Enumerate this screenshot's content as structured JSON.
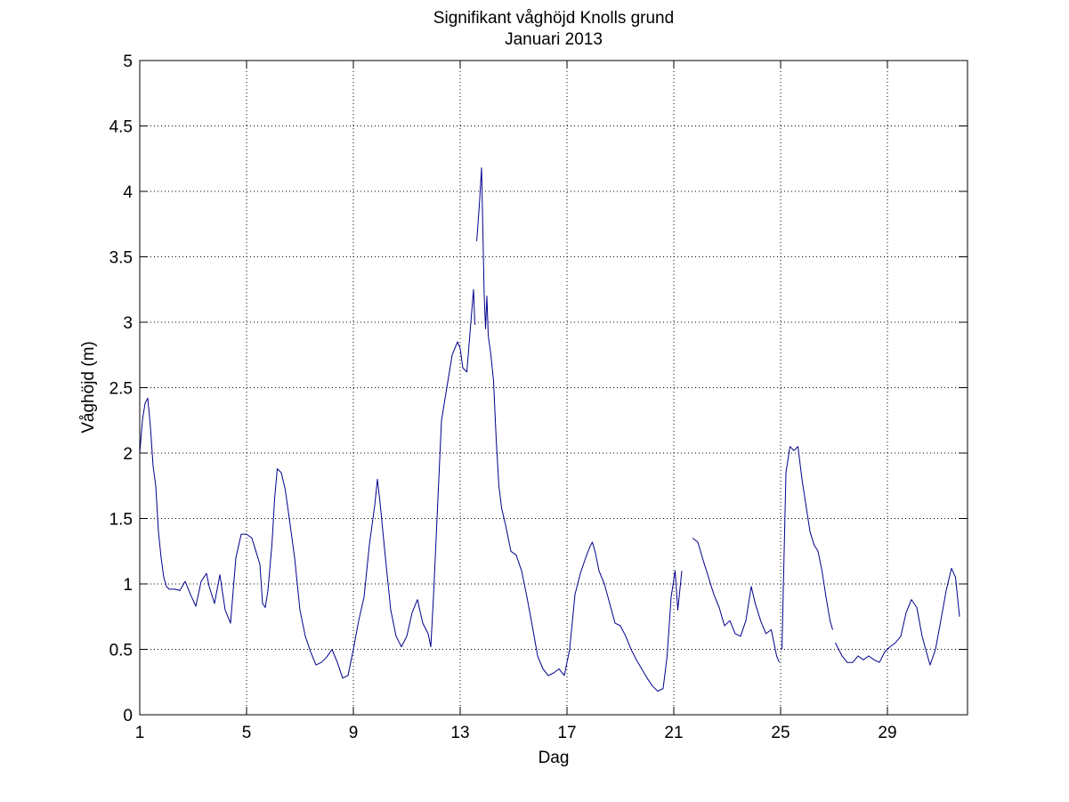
{
  "chart_data": {
    "type": "line",
    "title": "Signifikant våghöjd Knolls grund",
    "subtitle": "Januari 2013",
    "xlabel": "Dag",
    "ylabel": "Våghöjd (m)",
    "xlim": [
      1,
      32
    ],
    "ylim": [
      0,
      5
    ],
    "xticks": [
      1,
      5,
      9,
      13,
      17,
      21,
      25,
      29
    ],
    "yticks": [
      0,
      0.5,
      1,
      1.5,
      2,
      2.5,
      3,
      3.5,
      4,
      4.5,
      5
    ],
    "xtick_labels": [
      "1",
      "5",
      "9",
      "13",
      "17",
      "21",
      "25",
      "29"
    ],
    "ytick_labels": [
      "0",
      "0.5",
      "1",
      "1.5",
      "2",
      "2.5",
      "3",
      "3.5",
      "4",
      "4.5",
      "5"
    ],
    "grid": true,
    "line_color": "#00008b",
    "series": [
      {
        "segments": [
          [
            [
              1.0,
              2.0
            ],
            [
              1.1,
              2.25
            ],
            [
              1.2,
              2.38
            ],
            [
              1.3,
              2.42
            ],
            [
              1.4,
              2.2
            ],
            [
              1.5,
              1.9
            ],
            [
              1.6,
              1.75
            ],
            [
              1.7,
              1.4
            ],
            [
              1.8,
              1.2
            ],
            [
              1.9,
              1.05
            ],
            [
              2.0,
              0.98
            ],
            [
              2.1,
              0.96
            ],
            [
              2.3,
              0.96
            ],
            [
              2.5,
              0.95
            ],
            [
              2.7,
              1.02
            ],
            [
              2.9,
              0.92
            ],
            [
              3.1,
              0.83
            ],
            [
              3.3,
              1.02
            ],
            [
              3.5,
              1.08
            ],
            [
              3.6,
              0.98
            ],
            [
              3.8,
              0.85
            ],
            [
              4.0,
              1.07
            ],
            [
              4.2,
              0.8
            ],
            [
              4.4,
              0.7
            ],
            [
              4.6,
              1.2
            ],
            [
              4.8,
              1.38
            ],
            [
              5.0,
              1.38
            ],
            [
              5.2,
              1.35
            ],
            [
              5.35,
              1.25
            ],
            [
              5.5,
              1.15
            ],
            [
              5.6,
              0.85
            ],
            [
              5.7,
              0.82
            ],
            [
              5.8,
              0.95
            ],
            [
              5.95,
              1.3
            ],
            [
              6.05,
              1.65
            ],
            [
              6.15,
              1.88
            ],
            [
              6.3,
              1.85
            ],
            [
              6.45,
              1.72
            ],
            [
              6.6,
              1.5
            ],
            [
              6.8,
              1.2
            ],
            [
              7.0,
              0.8
            ],
            [
              7.2,
              0.6
            ],
            [
              7.4,
              0.48
            ],
            [
              7.6,
              0.38
            ],
            [
              7.8,
              0.4
            ],
            [
              8.0,
              0.44
            ],
            [
              8.2,
              0.5
            ],
            [
              8.4,
              0.4
            ],
            [
              8.6,
              0.28
            ],
            [
              8.8,
              0.3
            ],
            [
              9.0,
              0.5
            ],
            [
              9.2,
              0.72
            ],
            [
              9.4,
              0.9
            ],
            [
              9.6,
              1.3
            ],
            [
              9.8,
              1.6
            ],
            [
              9.9,
              1.8
            ],
            [
              10.0,
              1.62
            ],
            [
              10.2,
              1.2
            ],
            [
              10.4,
              0.8
            ],
            [
              10.6,
              0.6
            ],
            [
              10.8,
              0.52
            ],
            [
              11.0,
              0.6
            ],
            [
              11.2,
              0.78
            ],
            [
              11.4,
              0.88
            ],
            [
              11.6,
              0.7
            ],
            [
              11.8,
              0.62
            ],
            [
              11.9,
              0.52
            ],
            [
              12.0,
              0.9
            ],
            [
              12.2,
              1.8
            ],
            [
              12.3,
              2.25
            ],
            [
              12.5,
              2.5
            ],
            [
              12.7,
              2.75
            ],
            [
              12.9,
              2.85
            ],
            [
              13.0,
              2.8
            ],
            [
              13.1,
              2.65
            ],
            [
              13.25,
              2.62
            ],
            [
              13.4,
              3.0
            ],
            [
              13.5,
              3.25
            ],
            [
              13.55,
              2.98
            ]
          ],
          [
            [
              13.62,
              3.62
            ],
            [
              13.72,
              3.9
            ],
            [
              13.8,
              4.18
            ],
            [
              13.85,
              3.7
            ],
            [
              13.9,
              3.2
            ],
            [
              13.95,
              2.95
            ],
            [
              14.0,
              3.2
            ],
            [
              14.05,
              2.9
            ],
            [
              14.15,
              2.75
            ],
            [
              14.25,
              2.55
            ],
            [
              14.35,
              2.1
            ],
            [
              14.45,
              1.75
            ],
            [
              14.55,
              1.58
            ],
            [
              14.7,
              1.45
            ],
            [
              14.9,
              1.25
            ],
            [
              15.1,
              1.22
            ],
            [
              15.3,
              1.1
            ],
            [
              15.5,
              0.9
            ],
            [
              15.7,
              0.68
            ],
            [
              15.9,
              0.45
            ],
            [
              16.1,
              0.35
            ],
            [
              16.3,
              0.3
            ],
            [
              16.5,
              0.32
            ],
            [
              16.7,
              0.35
            ],
            [
              16.9,
              0.3
            ],
            [
              17.1,
              0.5
            ],
            [
              17.3,
              0.92
            ],
            [
              17.5,
              1.08
            ],
            [
              17.7,
              1.2
            ],
            [
              17.85,
              1.28
            ],
            [
              17.95,
              1.32
            ],
            [
              18.05,
              1.25
            ],
            [
              18.2,
              1.1
            ],
            [
              18.4,
              1.0
            ],
            [
              18.6,
              0.85
            ],
            [
              18.8,
              0.7
            ],
            [
              19.0,
              0.68
            ],
            [
              19.2,
              0.6
            ],
            [
              19.4,
              0.5
            ],
            [
              19.6,
              0.42
            ],
            [
              19.8,
              0.35
            ],
            [
              20.0,
              0.28
            ],
            [
              20.2,
              0.22
            ],
            [
              20.4,
              0.18
            ],
            [
              20.6,
              0.2
            ],
            [
              20.75,
              0.45
            ],
            [
              20.9,
              0.9
            ],
            [
              21.05,
              1.1
            ],
            [
              21.15,
              0.8
            ],
            [
              21.3,
              1.1
            ]
          ]
        ]
      },
      {
        "segments": [
          [
            [
              21.7,
              1.35
            ],
            [
              21.9,
              1.32
            ],
            [
              22.1,
              1.18
            ],
            [
              22.3,
              1.05
            ],
            [
              22.5,
              0.92
            ],
            [
              22.7,
              0.82
            ],
            [
              22.9,
              0.68
            ],
            [
              23.1,
              0.72
            ],
            [
              23.3,
              0.62
            ],
            [
              23.5,
              0.6
            ],
            [
              23.7,
              0.72
            ],
            [
              23.9,
              0.98
            ],
            [
              24.05,
              0.85
            ],
            [
              24.25,
              0.72
            ],
            [
              24.45,
              0.62
            ],
            [
              24.65,
              0.65
            ],
            [
              24.85,
              0.45
            ],
            [
              24.95,
              0.4
            ]
          ],
          [
            [
              25.05,
              0.5
            ],
            [
              25.2,
              1.85
            ],
            [
              25.35,
              2.05
            ],
            [
              25.5,
              2.02
            ],
            [
              25.65,
              2.05
            ],
            [
              25.8,
              1.8
            ],
            [
              25.95,
              1.6
            ],
            [
              26.1,
              1.4
            ],
            [
              26.25,
              1.3
            ],
            [
              26.4,
              1.25
            ],
            [
              26.55,
              1.1
            ],
            [
              26.7,
              0.9
            ],
            [
              26.85,
              0.72
            ],
            [
              26.95,
              0.65
            ]
          ]
        ]
      },
      {
        "segments": [
          [
            [
              27.05,
              0.55
            ],
            [
              27.3,
              0.45
            ],
            [
              27.5,
              0.4
            ],
            [
              27.7,
              0.4
            ],
            [
              27.9,
              0.45
            ],
            [
              28.1,
              0.42
            ],
            [
              28.3,
              0.45
            ],
            [
              28.5,
              0.42
            ],
            [
              28.7,
              0.4
            ],
            [
              28.9,
              0.48
            ],
            [
              29.1,
              0.52
            ],
            [
              29.3,
              0.55
            ],
            [
              29.5,
              0.6
            ],
            [
              29.7,
              0.78
            ],
            [
              29.9,
              0.88
            ],
            [
              30.1,
              0.82
            ],
            [
              30.3,
              0.6
            ],
            [
              30.5,
              0.45
            ],
            [
              30.6,
              0.38
            ],
            [
              30.8,
              0.5
            ],
            [
              31.0,
              0.72
            ],
            [
              31.2,
              0.95
            ],
            [
              31.4,
              1.12
            ],
            [
              31.55,
              1.05
            ],
            [
              31.7,
              0.75
            ]
          ]
        ]
      }
    ]
  }
}
